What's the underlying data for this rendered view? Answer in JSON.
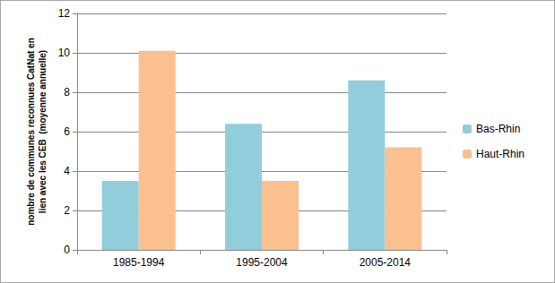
{
  "chart_data": {
    "type": "bar",
    "y_label": "nombre de communes reconnues CatNat en\nlien avec les CEB  (moyenne annuelle)",
    "categories": [
      "1985-1994",
      "1995-2004",
      "2005-2014"
    ],
    "series": [
      {
        "name": "Bas-Rhin",
        "color": "#92cddc",
        "values": [
          3.5,
          6.4,
          8.6
        ]
      },
      {
        "name": "Haut-Rhin",
        "color": "#fac090",
        "values": [
          10.1,
          3.5,
          5.2
        ]
      }
    ],
    "ylim": [
      0,
      12
    ],
    "yticks": [
      0,
      2,
      4,
      6,
      8,
      10,
      12
    ],
    "grid": true,
    "legend": "right"
  }
}
